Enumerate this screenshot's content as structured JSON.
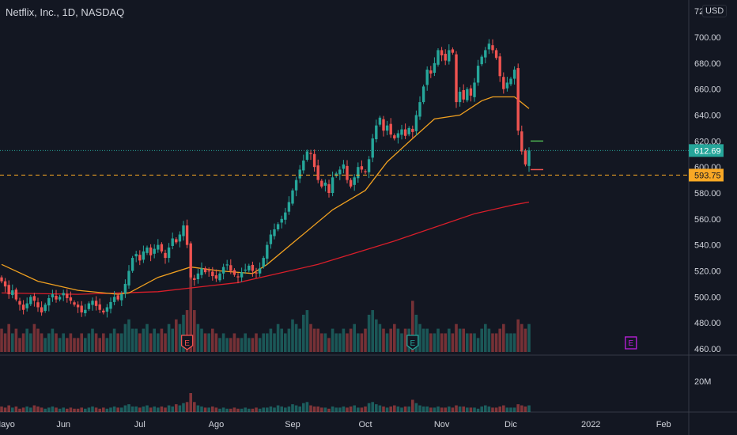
{
  "header": {
    "title": "Netflix, Inc., 1D, NASDAQ",
    "currency_button": "USD"
  },
  "colors": {
    "background": "#131722",
    "up": "#26a69a",
    "down": "#ef5350",
    "ma_fast": "#f0a020",
    "ma_slow": "#d81e2a",
    "last_price": "#26a69a",
    "ref_line": "#f9a825",
    "earnings_past_down": "#ef5350",
    "earnings_past_up": "#26a69a",
    "earnings_future": "#c020e0"
  },
  "chart_data": {
    "type": "candlestick",
    "symbol": "Netflix, Inc., 1D, NASDAQ",
    "price_axis": {
      "ticks": [
        700,
        680,
        660,
        640,
        620,
        600,
        580,
        560,
        540,
        520,
        500,
        480,
        460
      ],
      "top_partial_label": "72",
      "range": [
        460,
        700
      ]
    },
    "volume_axis": {
      "ticks": [
        {
          "value": 20,
          "label": "20M"
        }
      ]
    },
    "time_axis": {
      "labels": [
        "Mayo",
        "Jun",
        "Jul",
        "Ago",
        "Sep",
        "Oct",
        "Nov",
        "Dic",
        "2022",
        "Feb"
      ],
      "label_bar_index": [
        0,
        17,
        38,
        59,
        80,
        100,
        121,
        140,
        162,
        182
      ]
    },
    "closes": [
      512,
      508,
      502,
      505,
      498,
      494,
      490,
      495,
      500,
      497,
      492,
      488,
      494,
      499,
      502,
      498,
      500,
      503,
      499,
      497,
      494,
      492,
      488,
      490,
      495,
      497,
      493,
      490,
      488,
      492,
      496,
      500,
      498,
      502,
      510,
      520,
      530,
      533,
      528,
      535,
      538,
      532,
      537,
      540,
      535,
      530,
      538,
      545,
      542,
      548,
      555,
      540,
      515,
      513,
      518,
      522,
      519,
      520,
      516,
      514,
      518,
      523,
      525,
      520,
      517,
      515,
      519,
      521,
      524,
      520,
      518,
      522,
      530,
      540,
      548,
      552,
      556,
      560,
      565,
      573,
      582,
      590,
      598,
      605,
      612,
      610,
      600,
      590,
      585,
      588,
      580,
      592,
      595,
      598,
      602,
      590,
      585,
      592,
      600,
      598,
      596,
      606,
      622,
      632,
      638,
      628,
      632,
      625,
      622,
      626,
      629,
      624,
      630,
      627,
      640,
      650,
      662,
      675,
      672,
      680,
      690,
      686,
      682,
      690,
      688,
      650,
      658,
      652,
      660,
      655,
      665,
      678,
      685,
      690,
      695,
      690,
      684,
      670,
      660,
      665,
      668,
      675,
      628,
      612,
      602,
      612.69
    ],
    "volumes_millions": [
      5,
      4,
      6,
      4,
      5,
      3,
      4,
      5,
      4,
      6,
      5,
      4,
      3,
      4,
      5,
      4,
      3,
      4,
      3,
      4,
      3,
      3,
      4,
      3,
      4,
      5,
      4,
      3,
      4,
      3,
      4,
      5,
      4,
      4,
      6,
      7,
      5,
      5,
      4,
      5,
      6,
      4,
      5,
      4,
      5,
      4,
      6,
      5,
      7,
      6,
      8,
      9,
      17,
      9,
      6,
      5,
      4,
      4,
      5,
      4,
      3,
      4,
      3,
      3,
      4,
      3,
      3,
      4,
      3,
      3,
      4,
      3,
      4,
      4,
      5,
      4,
      6,
      5,
      4,
      5,
      7,
      6,
      5,
      8,
      9,
      6,
      5,
      5,
      4,
      4,
      3,
      5,
      4,
      4,
      5,
      4,
      5,
      6,
      4,
      4,
      5,
      8,
      9,
      7,
      6,
      5,
      4,
      5,
      6,
      5,
      4,
      5,
      5,
      11,
      8,
      6,
      5,
      5,
      4,
      4,
      5,
      4,
      4,
      5,
      4,
      6,
      5,
      5,
      4,
      4,
      4,
      3,
      5,
      6,
      5,
      4,
      4,
      5,
      6,
      4,
      4,
      4,
      7,
      6,
      5,
      6
    ],
    "ma_fast": [
      [
        0,
        525
      ],
      [
        10,
        512
      ],
      [
        21,
        505
      ],
      [
        32,
        502
      ],
      [
        35,
        503
      ],
      [
        43,
        515
      ],
      [
        52,
        523
      ],
      [
        60,
        520
      ],
      [
        69,
        518
      ],
      [
        73,
        525
      ],
      [
        82,
        546
      ],
      [
        91,
        567
      ],
      [
        100,
        582
      ],
      [
        106,
        604
      ],
      [
        113,
        622
      ],
      [
        119,
        637
      ],
      [
        126,
        640
      ],
      [
        132,
        651
      ],
      [
        135,
        654
      ],
      [
        141,
        654
      ],
      [
        145,
        645
      ]
    ],
    "ma_slow": [
      [
        0,
        503
      ],
      [
        21,
        502
      ],
      [
        43,
        504
      ],
      [
        65,
        511
      ],
      [
        87,
        525
      ],
      [
        108,
        543
      ],
      [
        130,
        564
      ],
      [
        141,
        571
      ],
      [
        145,
        573
      ]
    ],
    "last_price": {
      "value": 612.69,
      "label": "612.69"
    },
    "reference_line": {
      "value": 593.75,
      "label": "593.75"
    },
    "range_markers": {
      "upper": 620,
      "lower": 598
    },
    "earnings_markers": [
      {
        "bar": 51,
        "label": "E",
        "kind": "down"
      },
      {
        "bar": 113,
        "label": "E",
        "kind": "up"
      },
      {
        "bar": 173,
        "label": "E",
        "kind": "future"
      }
    ]
  }
}
